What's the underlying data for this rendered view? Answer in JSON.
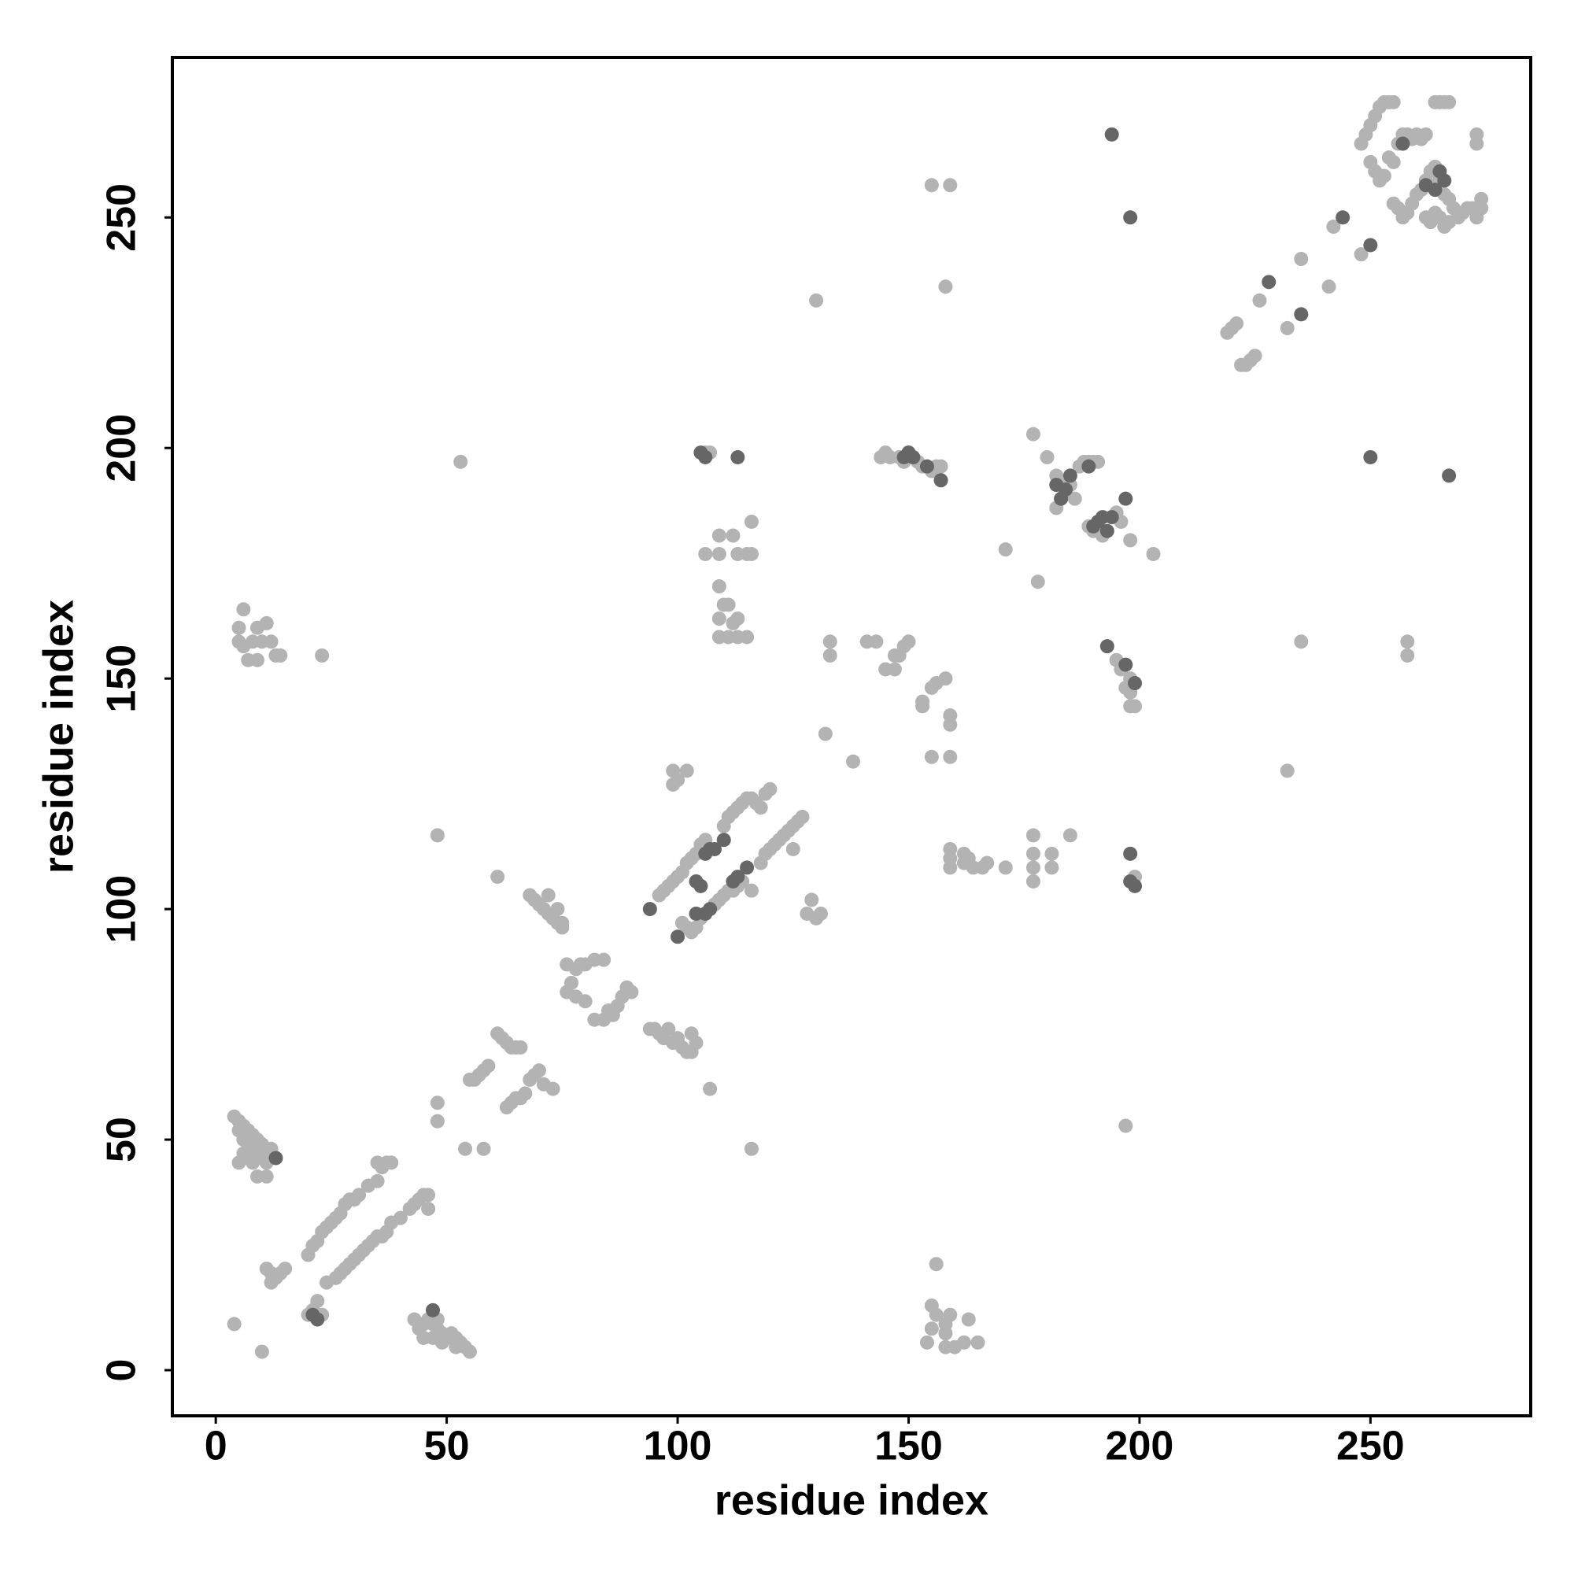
{
  "chart_data": {
    "type": "scatter",
    "xlabel": "residue index",
    "ylabel": "residue index",
    "xlim": [
      -9.4,
      284.7
    ],
    "ylim": [
      -9.9,
      284.7
    ],
    "xticks": [
      0,
      50,
      100,
      150,
      200,
      250
    ],
    "yticks": [
      0,
      50,
      100,
      150,
      200,
      250
    ],
    "series": [
      {
        "color": "#b3b3b3",
        "x": [
          4,
          5,
          6,
          7,
          8,
          9,
          10,
          11,
          5,
          6,
          7,
          8,
          9,
          6,
          7,
          8,
          5,
          9,
          11,
          12,
          11,
          10,
          11,
          12,
          13,
          14,
          15,
          12,
          20,
          21,
          22,
          23,
          24,
          25,
          26,
          27,
          28,
          29,
          30,
          31,
          33,
          35,
          36,
          37,
          38,
          35,
          20,
          21,
          22,
          23,
          24,
          26,
          27,
          28,
          29,
          30,
          31,
          32,
          33,
          34,
          35,
          36,
          37,
          38,
          40,
          42,
          43,
          44,
          45,
          46,
          46,
          4,
          10,
          43,
          44,
          45,
          46,
          47,
          48,
          49,
          50,
          51,
          52,
          53,
          54,
          55,
          47,
          49,
          52,
          48,
          45,
          9,
          6,
          5,
          6,
          7,
          8,
          10,
          11,
          12,
          13,
          14,
          9,
          23,
          5,
          53,
          48,
          61,
          48,
          48,
          54,
          58,
          107,
          116,
          55,
          56,
          57,
          58,
          59,
          61,
          62,
          63,
          64,
          65,
          66,
          63,
          64,
          65,
          66,
          67,
          68,
          69,
          70,
          71,
          73,
          68,
          69,
          70,
          71,
          72,
          73,
          74,
          75,
          72,
          74,
          75,
          76,
          77,
          78,
          79,
          80,
          82,
          84,
          76,
          78,
          80,
          82,
          84,
          85,
          86,
          87,
          88,
          89,
          90,
          94,
          95,
          96,
          97,
          98,
          99,
          100,
          101,
          102,
          103,
          104,
          103,
          96,
          97,
          98,
          99,
          100,
          101,
          102,
          103,
          104,
          105,
          106,
          110,
          111,
          112,
          113,
          114,
          115,
          116,
          117,
          118,
          119,
          120,
          101,
          102,
          103,
          104,
          105,
          108,
          109,
          110,
          111,
          112,
          113,
          114,
          116,
          118,
          119,
          120,
          121,
          122,
          123,
          124,
          125,
          126,
          127,
          125,
          99,
          100,
          102,
          99,
          106,
          107,
          106,
          109,
          109,
          112,
          113,
          115,
          116,
          116,
          109,
          110,
          109,
          111,
          112,
          113,
          109,
          111,
          113,
          115,
          130,
          129,
          128,
          130,
          131,
          132,
          138,
          133,
          133,
          141,
          143,
          145,
          147,
          148,
          149,
          150,
          147,
          153,
          153,
          155,
          156,
          158,
          155,
          159,
          159,
          159,
          144,
          145,
          146,
          148,
          149,
          150,
          152,
          153,
          155,
          156,
          157,
          155,
          159,
          158,
          154,
          155,
          155,
          156,
          156,
          158,
          158,
          158,
          159,
          160,
          162,
          163,
          165,
          159,
          159,
          159,
          162,
          162,
          163,
          164,
          166,
          167,
          171,
          177,
          177,
          177,
          177,
          181,
          181,
          185,
          171,
          177,
          178,
          180,
          182,
          182,
          183,
          184,
          185,
          186,
          187,
          188,
          189,
          190,
          191,
          192,
          195,
          196,
          198,
          203,
          189,
          190,
          195,
          196,
          198,
          198,
          199,
          198,
          197,
          199,
          197,
          232,
          235,
          258,
          258,
          219,
          220,
          221,
          222,
          223,
          224,
          225,
          226,
          232,
          235,
          241,
          242,
          248,
          248,
          249,
          250,
          251,
          252,
          253,
          254,
          255,
          250,
          251,
          252,
          253,
          254,
          255,
          256,
          257,
          258,
          259,
          260,
          261,
          262,
          255,
          256,
          257,
          258,
          259,
          260,
          261,
          262,
          263,
          264,
          262,
          263,
          264,
          265,
          266,
          267,
          268,
          269,
          270,
          271,
          272,
          273,
          265,
          266,
          267,
          264,
          265,
          266,
          267,
          273,
          273,
          274,
          274
        ],
        "values": [
          55,
          54,
          53,
          52,
          51,
          50,
          49,
          48,
          52,
          50,
          49,
          48,
          47,
          47,
          46,
          45,
          45,
          42,
          42,
          48,
          45,
          46,
          22,
          21,
          20,
          21,
          22,
          19,
          25,
          27,
          28,
          30,
          31,
          32,
          33,
          34,
          36,
          37,
          37,
          38,
          40,
          41,
          44,
          45,
          45,
          45,
          12,
          13,
          15,
          12,
          19,
          20,
          21,
          22,
          23,
          24,
          25,
          26,
          27,
          28,
          29,
          29,
          30,
          32,
          33,
          35,
          36,
          37,
          38,
          35,
          38,
          10,
          4,
          11,
          9,
          10,
          11,
          10,
          9,
          8,
          7,
          8,
          7,
          6,
          5,
          4,
          7,
          6,
          5,
          11,
          7,
          161,
          165,
          158,
          157,
          154,
          158,
          158,
          162,
          158,
          155,
          155,
          154,
          155,
          161,
          197,
          116,
          107,
          58,
          54,
          48,
          48,
          61,
          48,
          63,
          63,
          64,
          65,
          66,
          73,
          72,
          71,
          70,
          70,
          70,
          57,
          58,
          59,
          59,
          60,
          63,
          64,
          65,
          62,
          61,
          103,
          102,
          101,
          100,
          99,
          98,
          97,
          96,
          103,
          100,
          97,
          82,
          84,
          87,
          88,
          88,
          89,
          89,
          88,
          81,
          80,
          76,
          76,
          78,
          77,
          79,
          81,
          83,
          82,
          74,
          74,
          73,
          72,
          74,
          71,
          72,
          70,
          69,
          69,
          71,
          73,
          103,
          104,
          105,
          106,
          107,
          108,
          110,
          111,
          112,
          114,
          115,
          118,
          120,
          121,
          122,
          123,
          124,
          124,
          123,
          122,
          125,
          126,
          97,
          96,
          95,
          96,
          98,
          101,
          102,
          103,
          104,
          104,
          105,
          106,
          104,
          110,
          112,
          113,
          114,
          115,
          116,
          117,
          118,
          119,
          120,
          113,
          130,
          128,
          130,
          127,
          199,
          199,
          177,
          181,
          177,
          181,
          177,
          177,
          184,
          177,
          170,
          166,
          163,
          166,
          162,
          163,
          159,
          159,
          159,
          159,
          232,
          102,
          99,
          98,
          99,
          138,
          132,
          158,
          155,
          158,
          158,
          152,
          152,
          155,
          157,
          158,
          155,
          144,
          145,
          148,
          149,
          150,
          133,
          133,
          140,
          142,
          198,
          199,
          198,
          198,
          197,
          199,
          197,
          196,
          195,
          196,
          196,
          257,
          257,
          235,
          6,
          9,
          14,
          12,
          23,
          5,
          8,
          10,
          12,
          5,
          6,
          11,
          6,
          113,
          111,
          109,
          110,
          112,
          111,
          109,
          109,
          110,
          109,
          116,
          112,
          109,
          106,
          112,
          109,
          116,
          178,
          203,
          171,
          198,
          194,
          187,
          192,
          190,
          192,
          189,
          196,
          197,
          197,
          197,
          197,
          181,
          186,
          184,
          180,
          177,
          183,
          182,
          154,
          152,
          150,
          147,
          144,
          144,
          148,
          107,
          53,
          130,
          158,
          158,
          155,
          225,
          226,
          227,
          218,
          218,
          219,
          220,
          232,
          226,
          241,
          235,
          248,
          242,
          266,
          268,
          270,
          272,
          274,
          275,
          275,
          275,
          262,
          260,
          258,
          259,
          263,
          262,
          266,
          268,
          268,
          267,
          268,
          267,
          268,
          253,
          252,
          250,
          251,
          253,
          255,
          256,
          258,
          260,
          261,
          250,
          249,
          251,
          250,
          248,
          249,
          252,
          250,
          251,
          252,
          252,
          250,
          258,
          255,
          254,
          275,
          275,
          275,
          275,
          268,
          266,
          254,
          252
        ]
      },
      {
        "color": "#666666",
        "x": [
          13,
          21,
          22,
          47,
          94,
          100,
          104,
          105,
          106,
          107,
          108,
          110,
          104,
          106,
          107,
          112,
          113,
          115,
          113,
          105,
          106,
          149,
          150,
          151,
          154,
          157,
          182,
          183,
          184,
          185,
          189,
          190,
          191,
          192,
          193,
          194,
          197,
          193,
          197,
          199,
          198,
          198,
          199,
          228,
          235,
          244,
          250,
          250,
          267,
          194,
          198,
          257,
          262,
          264,
          265,
          266
        ],
        "values": [
          46,
          12,
          11,
          13,
          100,
          94,
          106,
          105,
          112,
          113,
          113,
          115,
          99,
          99,
          100,
          106,
          107,
          109,
          198,
          199,
          198,
          198,
          199,
          198,
          196,
          193,
          192,
          189,
          191,
          194,
          196,
          183,
          184,
          185,
          182,
          185,
          189,
          157,
          153,
          149,
          112,
          106,
          105,
          236,
          229,
          250,
          244,
          198,
          194,
          268,
          250,
          266,
          257,
          256,
          260,
          258
        ]
      }
    ]
  }
}
